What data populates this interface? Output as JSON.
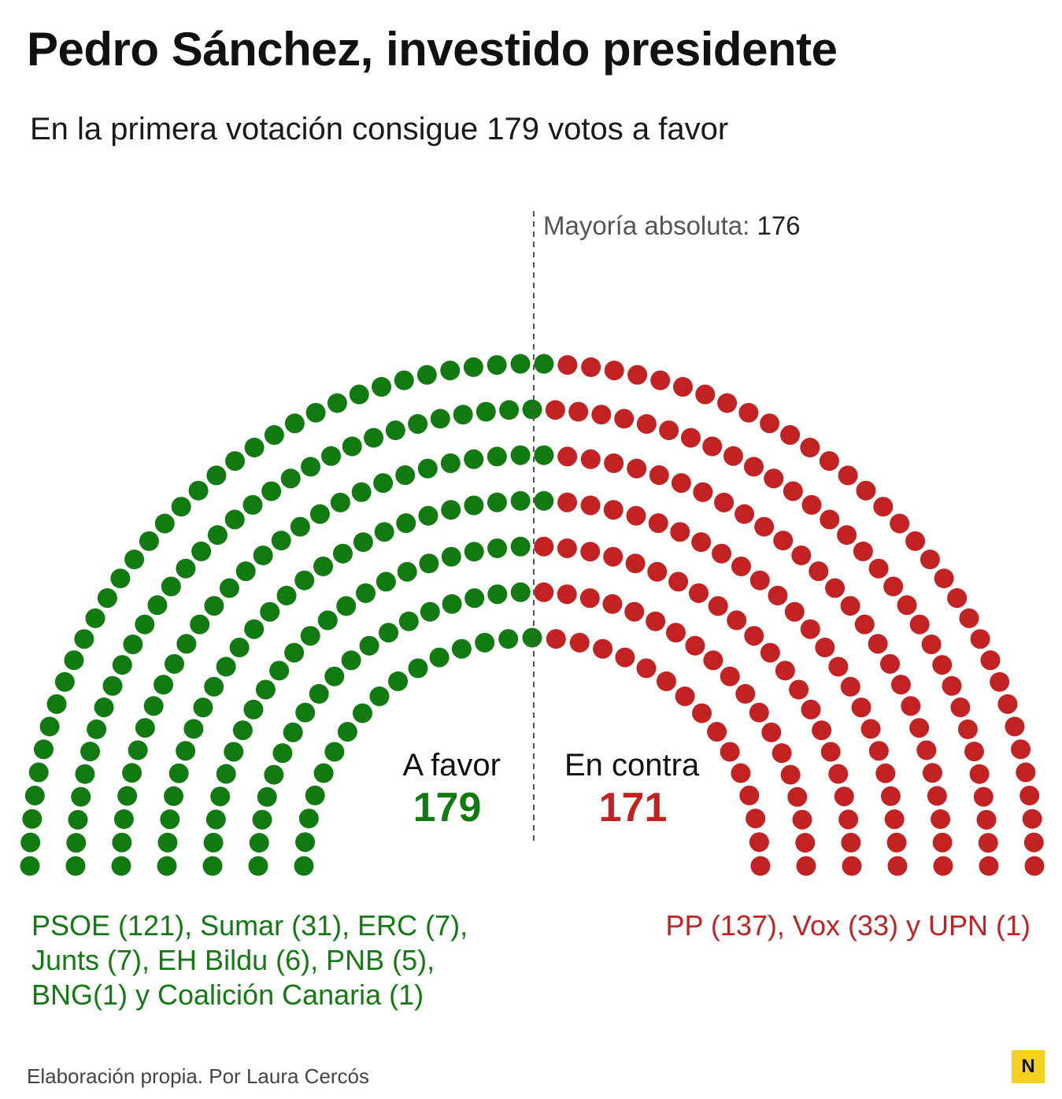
{
  "title": "Pedro Sánchez, investido presidente",
  "subtitle": "En la primera votación consigue 179 votos a favor",
  "majority": {
    "label": "Mayoría absoluta:",
    "value": "176"
  },
  "favor": {
    "label": "A favor",
    "value": "179",
    "parties_lines": [
      "PSOE (121), Sumar (31), ERC (7),",
      "Junts (7), EH Bildu (6), PNB (5),",
      "BNG(1) y Coalición Canaria (1)"
    ]
  },
  "contra": {
    "label": "En contra",
    "value": "171",
    "parties_lines": [
      "PP (137), Vox (33) y UPN (1)"
    ]
  },
  "footer": "Elaboración propia. Por Laura Cercós",
  "logo_letter": "N",
  "colors": {
    "favor": "#117a11",
    "contra": "#c22222",
    "logo_bg": "#f5d020"
  },
  "chart_data": {
    "type": "parliament",
    "total_seats": 350,
    "rows": 7,
    "majority": 176,
    "series": [
      {
        "name": "A favor",
        "value": 179
      },
      {
        "name": "En contra",
        "value": 171
      }
    ]
  }
}
